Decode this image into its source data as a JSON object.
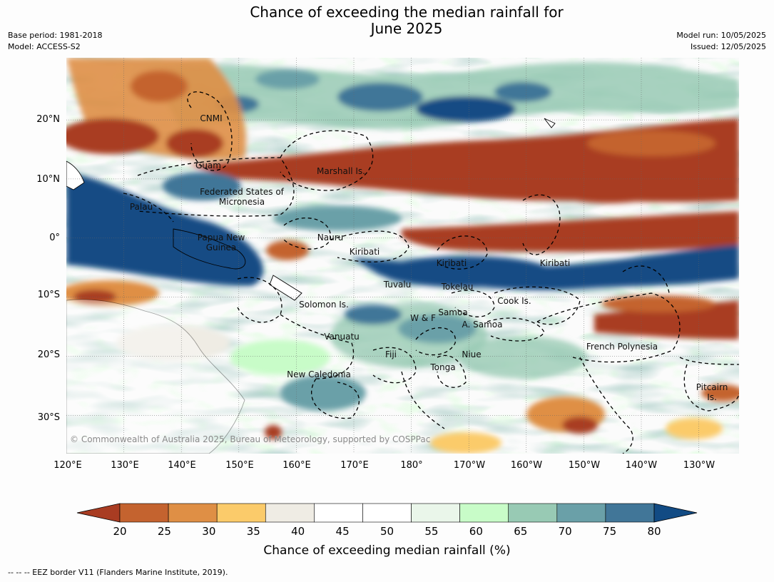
{
  "title_line1": "Chance of exceeding the median rainfall for",
  "title_line2": "June 2025",
  "meta": {
    "base_period": "Base period: 1981-2018",
    "model": "Model: ACCESS-S2",
    "model_run": "Model run: 10/05/2025",
    "issued": "Issued: 12/05/2025"
  },
  "axes": {
    "lat_labels": [
      "20°N",
      "10°N",
      "0°",
      "10°S",
      "20°S",
      "30°S"
    ],
    "lon_labels": [
      "120°E",
      "130°E",
      "140°E",
      "150°E",
      "160°E",
      "170°E",
      "180°",
      "170°W",
      "160°W",
      "150°W",
      "140°W",
      "130°W"
    ],
    "lat_range": [
      -36,
      31
    ],
    "lon_range": [
      120,
      237
    ]
  },
  "regions": [
    {
      "name": "CNMI"
    },
    {
      "name": "Guam"
    },
    {
      "name": "Marshall Is."
    },
    {
      "name": "Federated States of Micronesia"
    },
    {
      "name": "Palau"
    },
    {
      "name": "Nauru"
    },
    {
      "name": "Papua New Guinea"
    },
    {
      "name": "Kiribati"
    },
    {
      "name": "Kiribati"
    },
    {
      "name": "Kiribati"
    },
    {
      "name": "Tuvalu"
    },
    {
      "name": "Tokelau"
    },
    {
      "name": "Cook Is."
    },
    {
      "name": "Solomon Is."
    },
    {
      "name": "Samoa"
    },
    {
      "name": "W & F"
    },
    {
      "name": "A. Samoa"
    },
    {
      "name": "Vanuatu"
    },
    {
      "name": "Fiji"
    },
    {
      "name": "Niue"
    },
    {
      "name": "French Polynesia"
    },
    {
      "name": "Tonga"
    },
    {
      "name": "New Caledonia"
    },
    {
      "name": "Pitcairn Is."
    }
  ],
  "copyright": "© Commonwealth of Australia 2025, Bureau of Meteorology, supported by COSPPac",
  "colorbar": {
    "ticks": [
      "20",
      "25",
      "30",
      "35",
      "40",
      "45",
      "50",
      "55",
      "60",
      "65",
      "70",
      "75",
      "80"
    ],
    "colors": [
      "#c4632f",
      "#df8f45",
      "#fbcb6a",
      "#efece4",
      "#ffffff",
      "#ffffff",
      "#eaf6ea",
      "#c8fcc8",
      "#98cab4",
      "#6aa0a8",
      "#417698"
    ],
    "under_color": "#a93c22",
    "over_color": "#124b84",
    "label": "Chance of exceeding median rainfall (%)"
  },
  "footnote": "--  --  -- EEZ border V11 (Flanders Marine Institute, 2019)."
}
